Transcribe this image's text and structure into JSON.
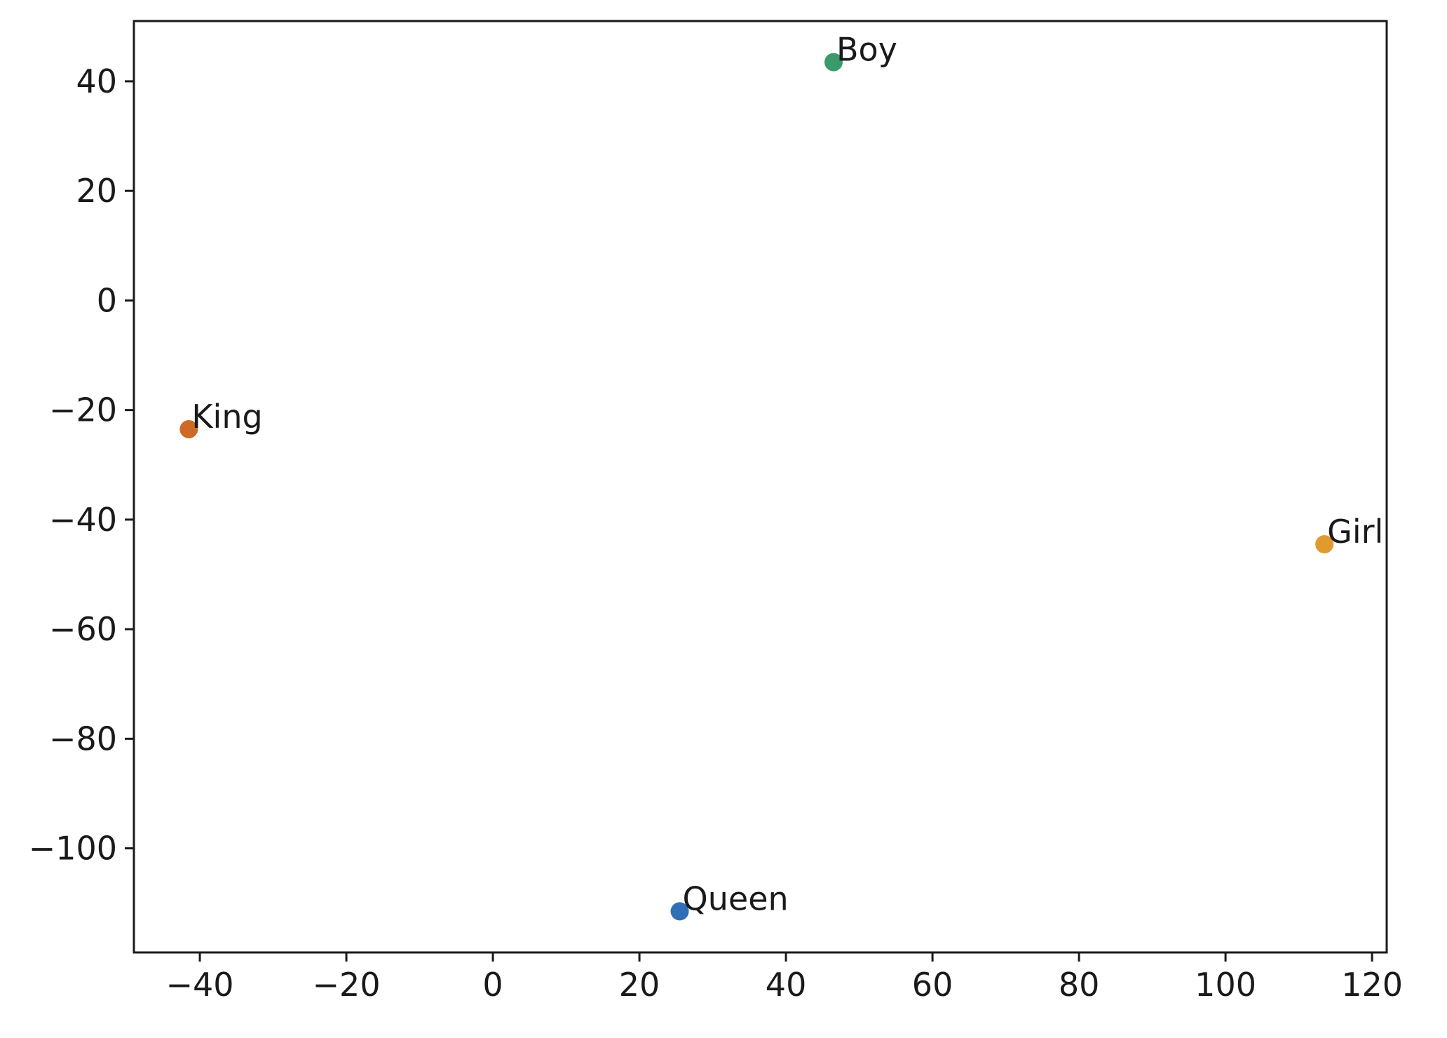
{
  "chart_data": {
    "type": "scatter",
    "title": "",
    "xlabel": "",
    "ylabel": "",
    "xlim": [
      -49,
      122
    ],
    "ylim": [
      -119,
      51
    ],
    "grid": false,
    "x_ticks": [
      {
        "value": -40,
        "label": "−40"
      },
      {
        "value": -20,
        "label": "−20"
      },
      {
        "value": 0,
        "label": "0"
      },
      {
        "value": 20,
        "label": "20"
      },
      {
        "value": 40,
        "label": "40"
      },
      {
        "value": 60,
        "label": "60"
      },
      {
        "value": 80,
        "label": "80"
      },
      {
        "value": 100,
        "label": "100"
      },
      {
        "value": 120,
        "label": "120"
      }
    ],
    "y_ticks": [
      {
        "value": 40,
        "label": "40"
      },
      {
        "value": 20,
        "label": "20"
      },
      {
        "value": 0,
        "label": "0"
      },
      {
        "value": -20,
        "label": "−20"
      },
      {
        "value": -40,
        "label": "−40"
      },
      {
        "value": -60,
        "label": "−60"
      },
      {
        "value": -80,
        "label": "−80"
      },
      {
        "value": -100,
        "label": "−100"
      }
    ],
    "points": [
      {
        "label": "Queen",
        "x": 25.5,
        "y": -111.5,
        "color": "#2f6fb5"
      },
      {
        "label": "King",
        "x": -41.5,
        "y": -23.5,
        "color": "#cc6a26"
      },
      {
        "label": "Boy",
        "x": 46.5,
        "y": 43.5,
        "color": "#3a9a6a"
      },
      {
        "label": "Girl",
        "x": 113.5,
        "y": -44.5,
        "color": "#e09a2e"
      }
    ]
  }
}
